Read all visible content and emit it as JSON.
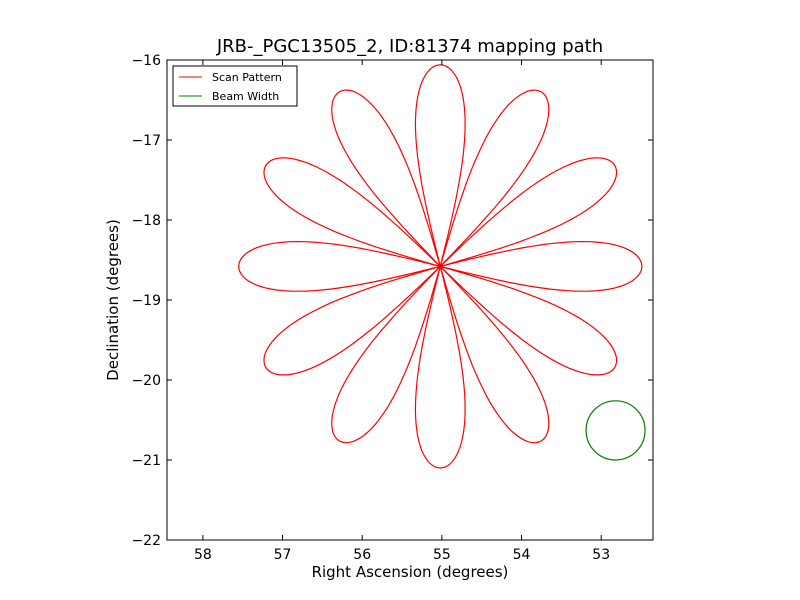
{
  "chart_data": {
    "type": "line",
    "title": "JRB-_PGC13505_2, ID:81374 mapping path",
    "xlabel": "Right Ascension (degrees)",
    "ylabel": "Declination (degrees)",
    "xlim": [
      58.45,
      52.35
    ],
    "ylim": [
      -22,
      -16
    ],
    "x_inverted": true,
    "xticks": [
      58,
      57,
      56,
      55,
      54,
      53
    ],
    "yticks": [
      -16,
      -17,
      -18,
      -19,
      -20,
      -21,
      -22
    ],
    "xtick_labels": [
      "58",
      "57",
      "56",
      "55",
      "54",
      "53"
    ],
    "ytick_labels": [
      "−16",
      "−17",
      "−18",
      "−19",
      "−20",
      "−21",
      "−22"
    ],
    "legend_position": "top-left",
    "grid": false,
    "series": [
      {
        "name": "Scan Pattern",
        "color": "#ff0000",
        "kind": "rose",
        "center": [
          55.02,
          -18.58
        ],
        "petals": 12,
        "petal_length_deg": 2.52,
        "petal_half_width_deg": 0.27,
        "petal_angles_deg": [
          0,
          30,
          60,
          90,
          120,
          150,
          180,
          210,
          240,
          270,
          300,
          330
        ]
      },
      {
        "name": "Beam Width",
        "color": "#008000",
        "kind": "circle",
        "center": [
          52.82,
          -20.63
        ],
        "radius_deg": 0.37
      }
    ]
  }
}
